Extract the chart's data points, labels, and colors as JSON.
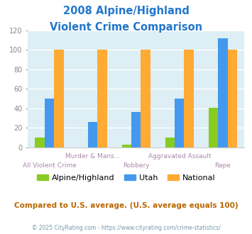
{
  "title_line1": "2008 Alpine/Highland",
  "title_line2": "Violent Crime Comparison",
  "title_color": "#2277cc",
  "categories_top": [
    "Murder & Mans...",
    "Aggravated Assault"
  ],
  "categories_bottom": [
    "All Violent Crime",
    "Robbery",
    "Rape"
  ],
  "categories": [
    "All Violent Crime",
    "Murder & Mans...",
    "Robbery",
    "Aggravated Assault",
    "Rape"
  ],
  "series": {
    "Alpine/Highland": [
      10,
      0,
      3,
      10,
      41
    ],
    "Utah": [
      50,
      26,
      36,
      50,
      112
    ],
    "National": [
      100,
      100,
      100,
      100,
      100
    ]
  },
  "colors": {
    "Alpine/Highland": "#88cc22",
    "Utah": "#4499ee",
    "National": "#ffaa33"
  },
  "ylim": [
    0,
    120
  ],
  "yticks": [
    0,
    20,
    40,
    60,
    80,
    100,
    120
  ],
  "background_color": "#ddeef5",
  "note_text": "Compared to U.S. average. (U.S. average equals 100)",
  "note_color": "#bb6600",
  "copyright_text": "© 2025 CityRating.com - https://www.cityrating.com/crime-statistics/",
  "copyright_color": "#7799aa",
  "bar_width": 0.22
}
